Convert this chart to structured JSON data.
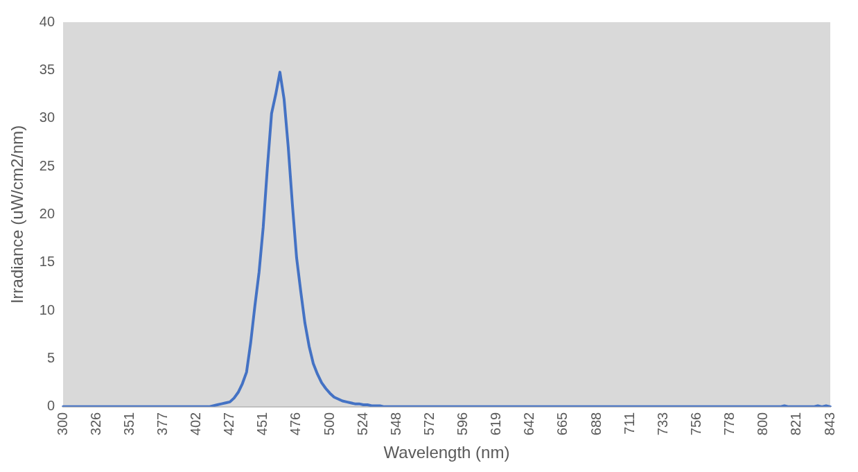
{
  "chart_data": {
    "type": "line",
    "xlabel": "Wavelength (nm)",
    "ylabel": "Irradiance (uW/cm2/nm)",
    "categories": [
      "300",
      null,
      null,
      null,
      null,
      null,
      null,
      null,
      "326",
      null,
      null,
      null,
      null,
      null,
      null,
      null,
      "351",
      null,
      null,
      null,
      null,
      null,
      null,
      null,
      "377",
      null,
      null,
      null,
      null,
      null,
      null,
      null,
      "402",
      null,
      null,
      null,
      null,
      null,
      null,
      null,
      "427",
      null,
      null,
      null,
      null,
      null,
      null,
      null,
      "451",
      null,
      null,
      null,
      null,
      null,
      null,
      null,
      "476",
      null,
      null,
      null,
      null,
      null,
      null,
      null,
      "500",
      null,
      null,
      null,
      null,
      null,
      null,
      null,
      "524",
      null,
      null,
      null,
      null,
      null,
      null,
      null,
      "548",
      null,
      null,
      null,
      null,
      null,
      null,
      null,
      "572",
      null,
      null,
      null,
      null,
      null,
      null,
      null,
      "596",
      null,
      null,
      null,
      null,
      null,
      null,
      null,
      "619",
      null,
      null,
      null,
      null,
      null,
      null,
      null,
      "642",
      null,
      null,
      null,
      null,
      null,
      null,
      null,
      "665",
      null,
      null,
      null,
      null,
      null,
      null,
      null,
      "688",
      null,
      null,
      null,
      null,
      null,
      null,
      null,
      "711",
      null,
      null,
      null,
      null,
      null,
      null,
      null,
      "733",
      null,
      null,
      null,
      null,
      null,
      null,
      null,
      "756",
      null,
      null,
      null,
      null,
      null,
      null,
      null,
      "778",
      null,
      null,
      null,
      null,
      null,
      null,
      null,
      "800",
      null,
      null,
      null,
      null,
      null,
      null,
      null,
      "821",
      null,
      null,
      null,
      null,
      null,
      null,
      null,
      "843"
    ],
    "series": [
      {
        "color": "#4472c4",
        "values": [
          0,
          0,
          0,
          0,
          0,
          0,
          0,
          0,
          0,
          0,
          0,
          0,
          0,
          0,
          0,
          0,
          0,
          0,
          0,
          0,
          0,
          0,
          0,
          0,
          0,
          0,
          0,
          0,
          0,
          0,
          0,
          0,
          0,
          0,
          0,
          0,
          0.1,
          0.2,
          0.3,
          0.4,
          0.5,
          0.9,
          1.5,
          2.4,
          3.6,
          6.7,
          10.5,
          14,
          18.7,
          24.9,
          30.5,
          32.5,
          34.8,
          32,
          27,
          21,
          15.5,
          12,
          8.7,
          6.3,
          4.5,
          3.4,
          2.5,
          1.9,
          1.4,
          1,
          0.8,
          0.6,
          0.5,
          0.4,
          0.3,
          0.3,
          0.2,
          0.2,
          0.1,
          0.1,
          0.1,
          0,
          0,
          0,
          0,
          0,
          0,
          0,
          0,
          0,
          0,
          0,
          0,
          0,
          0,
          0,
          0,
          0,
          0,
          0,
          0,
          0,
          0,
          0,
          0,
          0,
          0,
          0,
          0,
          0,
          0,
          0,
          0,
          0,
          0,
          0,
          0,
          0,
          0,
          0,
          0,
          0,
          0,
          0,
          0,
          0,
          0,
          0,
          0,
          0,
          0,
          0,
          0,
          0,
          0,
          0,
          0,
          0,
          0,
          0,
          0,
          0,
          0,
          0,
          0,
          0,
          0,
          0,
          0,
          0,
          0,
          0,
          0,
          0,
          0,
          0,
          0,
          0,
          0,
          0,
          0,
          0,
          0,
          0,
          0,
          0,
          0,
          0,
          0,
          0,
          0,
          0,
          0,
          0,
          0,
          0,
          0,
          0.1,
          0,
          0,
          0,
          0,
          0,
          0,
          0,
          0.1,
          0,
          0.1,
          0
        ]
      }
    ],
    "ylim": [
      0,
      40
    ],
    "yticks": [
      0,
      5,
      10,
      15,
      20,
      25,
      30,
      35,
      40
    ],
    "grid": false,
    "legend": false,
    "marker": "none",
    "line_style": "solid"
  }
}
